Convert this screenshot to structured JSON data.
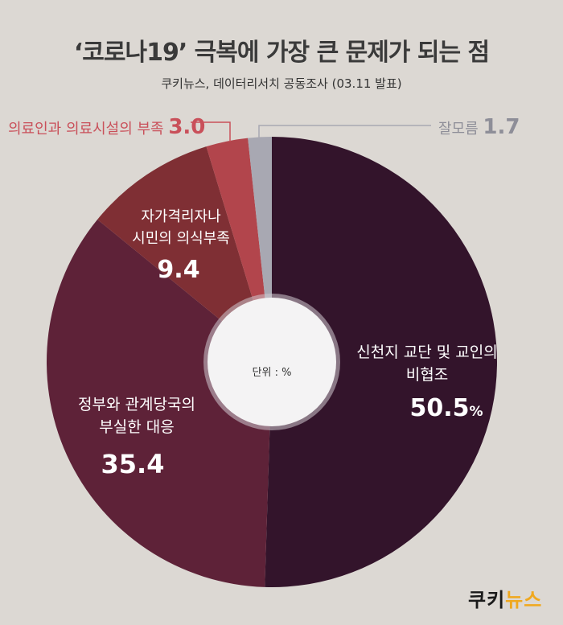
{
  "title": "‘코로나19’ 극복에 가장 큰 문제가 되는 점",
  "subtitle": "쿠키뉴스, 데이터리서치 공동조사 (03.11 발표)",
  "center_label": "단위 : %",
  "logo": {
    "part1": "쿠키",
    "part2": "뉴스"
  },
  "chart_data": {
    "type": "pie",
    "unit": "%",
    "slices": [
      {
        "label": "신천지 교단 및 교인의 비협조",
        "value": 50.5,
        "value_text": "50.5",
        "suffix": "%",
        "color": "#33142b"
      },
      {
        "label": "정부와 관계당국의 부실한 대응",
        "value": 35.4,
        "value_text": "35.4",
        "suffix": "",
        "color": "#5e2238"
      },
      {
        "label": "자가격리자나 시민의 의식부족",
        "value": 9.4,
        "value_text": "9.4",
        "suffix": "",
        "color": "#7f2f34"
      },
      {
        "label": "의료인과 의료시설의 부족",
        "value": 3.0,
        "value_text": "3.0",
        "suffix": "",
        "color": "#b2454c"
      },
      {
        "label": "잘모름",
        "value": 1.7,
        "value_text": "1.7",
        "suffix": "",
        "color": "#a8a8b2"
      }
    ],
    "label_colors": {
      "inside": "#ffffff",
      "shortage": "#c9505a",
      "unknown": "#8e8e98"
    }
  }
}
